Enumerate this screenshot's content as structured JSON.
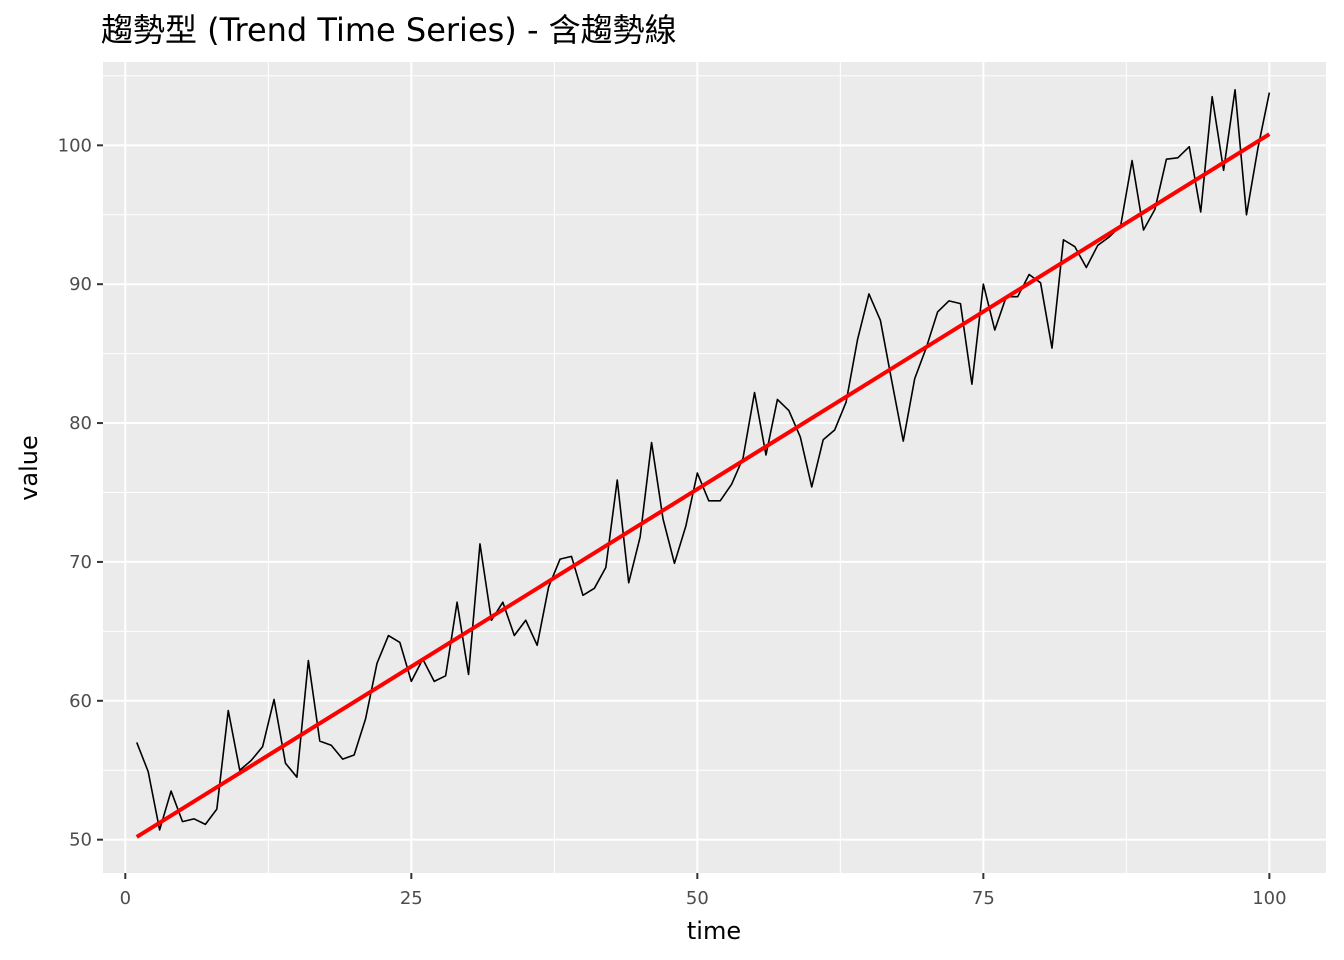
{
  "chart_data": {
    "type": "line",
    "title": "趨勢型 (Trend Time Series) - 含趨勢線",
    "xlabel": "time",
    "ylabel": "value",
    "xlim": [
      -1.95,
      104.95
    ],
    "ylim": [
      47.6,
      106.0
    ],
    "x_ticks": [
      0,
      25,
      50,
      75,
      100
    ],
    "y_ticks": [
      50,
      60,
      70,
      80,
      90,
      100
    ],
    "x_tick_labels": [
      "0",
      "25",
      "50",
      "75",
      "100"
    ],
    "y_tick_labels": [
      "50",
      "60",
      "70",
      "80",
      "90",
      "100"
    ],
    "grid": true,
    "legend": "none",
    "panel_background": "#ebebeb",
    "series": [
      {
        "color": "#000000",
        "x": [
          1,
          2,
          3,
          4,
          5,
          6,
          7,
          8,
          9,
          10,
          11,
          12,
          13,
          14,
          15,
          16,
          17,
          18,
          19,
          20,
          21,
          22,
          23,
          24,
          25,
          26,
          27,
          28,
          29,
          30,
          31,
          32,
          33,
          34,
          35,
          36,
          37,
          38,
          39,
          40,
          41,
          42,
          43,
          44,
          45,
          46,
          47,
          48,
          49,
          50,
          51,
          52,
          53,
          54,
          55,
          56,
          57,
          58,
          59,
          60,
          61,
          62,
          63,
          64,
          65,
          66,
          67,
          68,
          69,
          70,
          71,
          72,
          73,
          74,
          75,
          76,
          77,
          78,
          79,
          80,
          81,
          82,
          83,
          84,
          85,
          86,
          87,
          88,
          89,
          90,
          91,
          92,
          93,
          94,
          95,
          96,
          97,
          98,
          99,
          100
        ],
        "values": [
          57.0,
          54.9,
          50.7,
          53.5,
          51.3,
          51.5,
          51.1,
          52.2,
          59.3,
          55.0,
          55.7,
          56.7,
          60.1,
          55.5,
          54.5,
          62.9,
          57.1,
          56.8,
          55.8,
          56.1,
          58.7,
          62.7,
          64.7,
          64.2,
          61.4,
          63.0,
          61.4,
          61.8,
          67.1,
          61.9,
          71.3,
          65.8,
          67.1,
          64.7,
          65.8,
          64.0,
          68.2,
          70.2,
          70.4,
          67.6,
          68.1,
          69.6,
          75.9,
          68.5,
          71.8,
          78.6,
          73.1,
          69.9,
          72.6,
          76.4,
          74.4,
          74.4,
          75.6,
          77.5,
          82.2,
          77.7,
          81.7,
          80.9,
          79.0,
          75.4,
          78.8,
          79.5,
          81.5,
          86.0,
          89.3,
          87.4,
          83.0,
          78.7,
          83.2,
          85.4,
          88.0,
          88.8,
          88.6,
          82.8,
          90.0,
          86.7,
          89.1,
          89.1,
          90.7,
          90.1,
          85.4,
          93.2,
          92.7,
          91.2,
          92.8,
          93.4,
          94.2,
          98.9,
          93.9,
          95.4,
          99.0,
          99.1,
          99.9,
          95.2,
          103.5,
          98.2,
          104.0,
          95.0,
          99.8,
          103.8
        ]
      },
      {
        "color": "#ff0000",
        "type": "line",
        "x": [
          1,
          100
        ],
        "values": [
          50.2,
          100.8
        ]
      }
    ]
  }
}
